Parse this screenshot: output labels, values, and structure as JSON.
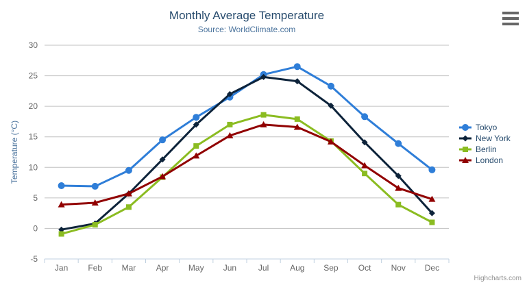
{
  "chart": {
    "credits": "Highcharts.com",
    "menu_icon": "hamburger-icon"
  },
  "chart_data": {
    "type": "line",
    "title": "Monthly Average Temperature",
    "subtitle": "Source: WorldClimate.com",
    "categories": [
      "Jan",
      "Feb",
      "Mar",
      "Apr",
      "May",
      "Jun",
      "Jul",
      "Aug",
      "Sep",
      "Oct",
      "Nov",
      "Dec"
    ],
    "xlabel": "",
    "ylabel": "Temperature (°C)",
    "ylim": [
      -5,
      30
    ],
    "ytick_interval": 5,
    "grid": "horizontal",
    "legend_position": "right",
    "colors": {
      "grid_line": "#c0c0c0",
      "axis_line": "#c0d0e0",
      "axis_label": "#666666",
      "title_text": "#274b6d",
      "subtitle_text": "#4d759e",
      "legend_text": "#274b6d"
    },
    "series": [
      {
        "name": "Tokyo",
        "color": "#2f7ed8",
        "marker": "circle",
        "values": [
          7.0,
          6.9,
          9.5,
          14.5,
          18.2,
          21.5,
          25.2,
          26.5,
          23.3,
          18.3,
          13.9,
          9.6
        ]
      },
      {
        "name": "New York",
        "color": "#0d233a",
        "marker": "diamond",
        "values": [
          -0.2,
          0.8,
          5.7,
          11.3,
          17.0,
          22.0,
          24.8,
          24.1,
          20.1,
          14.1,
          8.6,
          2.5
        ]
      },
      {
        "name": "Berlin",
        "color": "#8bbc21",
        "marker": "square",
        "values": [
          -0.9,
          0.6,
          3.5,
          8.4,
          13.5,
          17.0,
          18.6,
          17.9,
          14.3,
          9.0,
          3.9,
          1.0
        ]
      },
      {
        "name": "London",
        "color": "#910000",
        "marker": "triangle",
        "values": [
          3.9,
          4.2,
          5.7,
          8.5,
          11.9,
          15.2,
          17.0,
          16.6,
          14.2,
          10.3,
          6.6,
          4.8
        ]
      }
    ]
  }
}
